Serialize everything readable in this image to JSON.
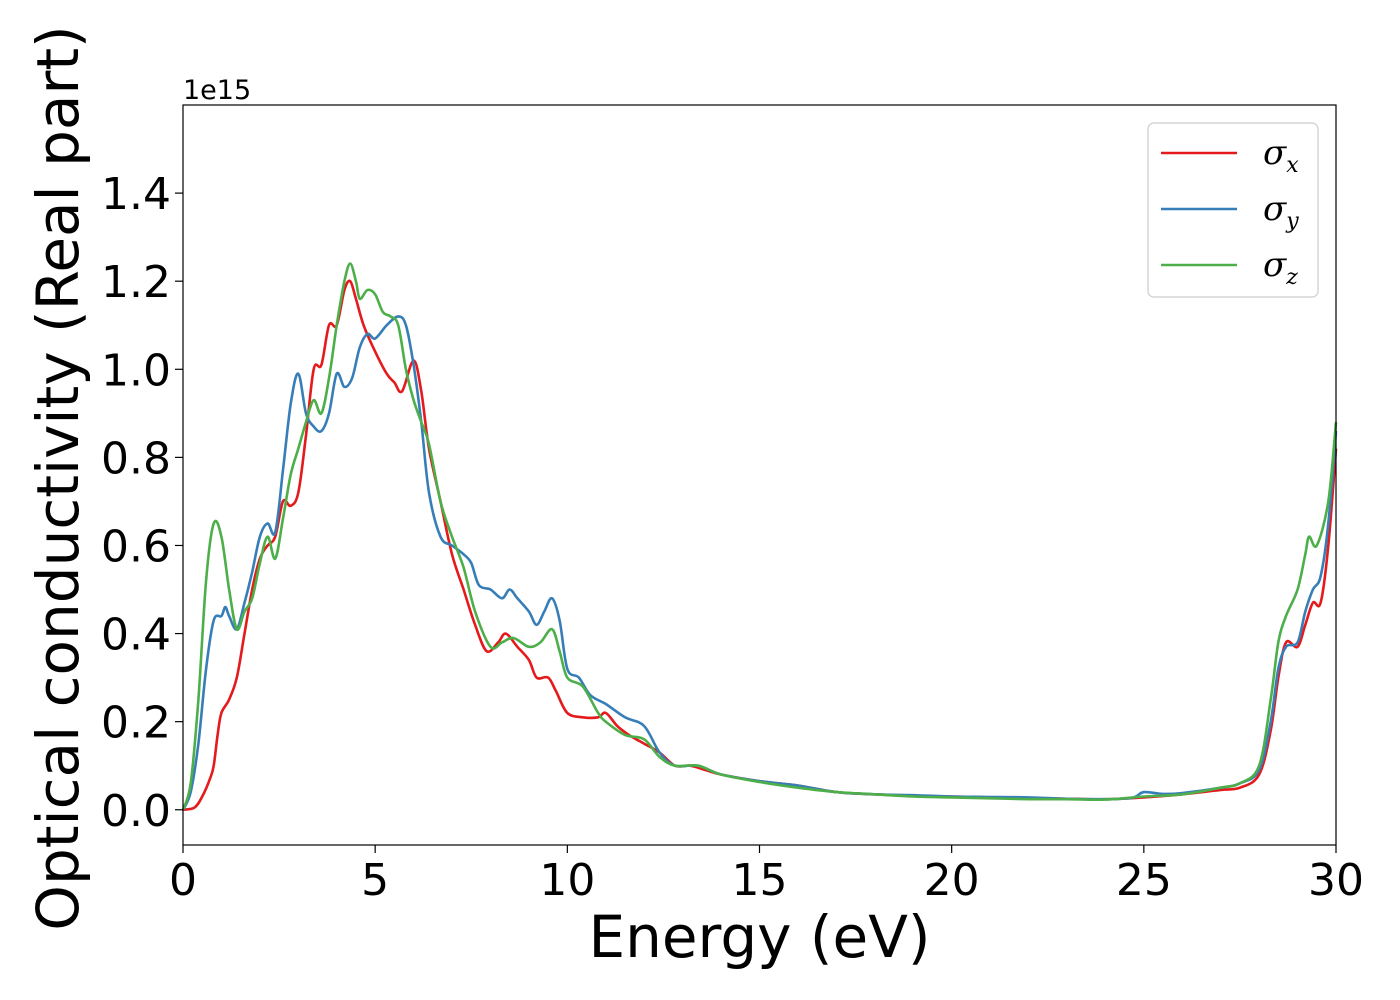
{
  "chart_data": {
    "type": "line",
    "xlabel": "Energy (eV)",
    "ylabel": "Optical conductivity (Real part)",
    "y_offset_label": "1e15",
    "xlim": [
      0,
      30
    ],
    "ylim": [
      -0.08,
      1.6
    ],
    "x_ticks": [
      0,
      5,
      10,
      15,
      20,
      25,
      30
    ],
    "x_tick_labels": [
      "0",
      "5",
      "10",
      "15",
      "20",
      "25",
      "30"
    ],
    "y_ticks": [
      0.0,
      0.2,
      0.4,
      0.6,
      0.8,
      1.0,
      1.2,
      1.4
    ],
    "y_tick_labels": [
      "0.0",
      "0.2",
      "0.4",
      "0.6",
      "0.8",
      "1.0",
      "1.2",
      "1.4"
    ],
    "grid": false,
    "legend_position": "top-right",
    "series": [
      {
        "name": "σx",
        "symbol": "σ",
        "subscript": "x",
        "color": "#e41a1c",
        "points": [
          [
            0,
            0
          ],
          [
            0.3,
            0.005
          ],
          [
            0.5,
            0.03
          ],
          [
            0.7,
            0.07
          ],
          [
            0.8,
            0.1
          ],
          [
            0.9,
            0.17
          ],
          [
            1.0,
            0.22
          ],
          [
            1.2,
            0.25
          ],
          [
            1.4,
            0.3
          ],
          [
            1.6,
            0.4
          ],
          [
            1.8,
            0.5
          ],
          [
            2.0,
            0.57
          ],
          [
            2.2,
            0.6
          ],
          [
            2.4,
            0.62
          ],
          [
            2.6,
            0.7
          ],
          [
            2.8,
            0.69
          ],
          [
            3.0,
            0.72
          ],
          [
            3.2,
            0.85
          ],
          [
            3.4,
            1.0
          ],
          [
            3.6,
            1.01
          ],
          [
            3.8,
            1.1
          ],
          [
            4.0,
            1.1
          ],
          [
            4.2,
            1.18
          ],
          [
            4.35,
            1.2
          ],
          [
            4.5,
            1.16
          ],
          [
            4.7,
            1.1
          ],
          [
            5.0,
            1.04
          ],
          [
            5.3,
            0.99
          ],
          [
            5.5,
            0.97
          ],
          [
            5.7,
            0.95
          ],
          [
            6.0,
            1.02
          ],
          [
            6.2,
            0.95
          ],
          [
            6.4,
            0.82
          ],
          [
            6.7,
            0.7
          ],
          [
            7.0,
            0.58
          ],
          [
            7.3,
            0.5
          ],
          [
            7.6,
            0.42
          ],
          [
            7.9,
            0.36
          ],
          [
            8.2,
            0.38
          ],
          [
            8.4,
            0.4
          ],
          [
            8.7,
            0.37
          ],
          [
            9.0,
            0.34
          ],
          [
            9.2,
            0.3
          ],
          [
            9.5,
            0.3
          ],
          [
            9.7,
            0.27
          ],
          [
            10.0,
            0.22
          ],
          [
            10.4,
            0.21
          ],
          [
            10.8,
            0.21
          ],
          [
            11.0,
            0.22
          ],
          [
            11.3,
            0.19
          ],
          [
            11.6,
            0.17
          ],
          [
            12.0,
            0.15
          ],
          [
            12.4,
            0.13
          ],
          [
            12.8,
            0.1
          ],
          [
            13.2,
            0.1
          ],
          [
            13.6,
            0.09
          ],
          [
            14.0,
            0.08
          ],
          [
            15.0,
            0.065
          ],
          [
            16.0,
            0.055
          ],
          [
            17.0,
            0.04
          ],
          [
            18.0,
            0.035
          ],
          [
            19.0,
            0.032
          ],
          [
            20.0,
            0.03
          ],
          [
            21.0,
            0.028
          ],
          [
            22.0,
            0.027
          ],
          [
            23.0,
            0.025
          ],
          [
            24.0,
            0.024
          ],
          [
            25.0,
            0.028
          ],
          [
            26.0,
            0.035
          ],
          [
            27.0,
            0.045
          ],
          [
            27.5,
            0.05
          ],
          [
            28.0,
            0.08
          ],
          [
            28.3,
            0.18
          ],
          [
            28.5,
            0.3
          ],
          [
            28.7,
            0.38
          ],
          [
            29.0,
            0.37
          ],
          [
            29.2,
            0.42
          ],
          [
            29.4,
            0.47
          ],
          [
            29.6,
            0.47
          ],
          [
            29.8,
            0.6
          ],
          [
            30.0,
            0.82
          ]
        ]
      },
      {
        "name": "σy",
        "symbol": "σ",
        "subscript": "y",
        "color": "#377eb8",
        "points": [
          [
            0,
            0
          ],
          [
            0.2,
            0.04
          ],
          [
            0.4,
            0.15
          ],
          [
            0.6,
            0.32
          ],
          [
            0.8,
            0.43
          ],
          [
            1.0,
            0.44
          ],
          [
            1.1,
            0.46
          ],
          [
            1.2,
            0.44
          ],
          [
            1.4,
            0.41
          ],
          [
            1.6,
            0.47
          ],
          [
            1.8,
            0.54
          ],
          [
            2.0,
            0.62
          ],
          [
            2.2,
            0.65
          ],
          [
            2.4,
            0.63
          ],
          [
            2.6,
            0.77
          ],
          [
            2.8,
            0.92
          ],
          [
            3.0,
            0.99
          ],
          [
            3.2,
            0.9
          ],
          [
            3.4,
            0.87
          ],
          [
            3.6,
            0.86
          ],
          [
            3.8,
            0.9
          ],
          [
            4.0,
            0.99
          ],
          [
            4.2,
            0.96
          ],
          [
            4.4,
            0.98
          ],
          [
            4.6,
            1.05
          ],
          [
            4.8,
            1.08
          ],
          [
            5.0,
            1.07
          ],
          [
            5.3,
            1.1
          ],
          [
            5.6,
            1.12
          ],
          [
            5.8,
            1.1
          ],
          [
            6.0,
            1.01
          ],
          [
            6.2,
            0.88
          ],
          [
            6.4,
            0.72
          ],
          [
            6.7,
            0.62
          ],
          [
            7.0,
            0.6
          ],
          [
            7.3,
            0.58
          ],
          [
            7.5,
            0.56
          ],
          [
            7.7,
            0.51
          ],
          [
            8.0,
            0.5
          ],
          [
            8.3,
            0.48
          ],
          [
            8.5,
            0.5
          ],
          [
            8.7,
            0.48
          ],
          [
            9.0,
            0.45
          ],
          [
            9.2,
            0.42
          ],
          [
            9.4,
            0.45
          ],
          [
            9.6,
            0.48
          ],
          [
            9.8,
            0.43
          ],
          [
            10.0,
            0.32
          ],
          [
            10.3,
            0.3
          ],
          [
            10.6,
            0.26
          ],
          [
            11.0,
            0.24
          ],
          [
            11.5,
            0.21
          ],
          [
            12.0,
            0.19
          ],
          [
            12.4,
            0.13
          ],
          [
            12.8,
            0.1
          ],
          [
            13.4,
            0.1
          ],
          [
            14.0,
            0.08
          ],
          [
            15.0,
            0.065
          ],
          [
            16.0,
            0.055
          ],
          [
            17.0,
            0.04
          ],
          [
            18.0,
            0.035
          ],
          [
            19.0,
            0.033
          ],
          [
            20.0,
            0.03
          ],
          [
            21.0,
            0.029
          ],
          [
            22.0,
            0.028
          ],
          [
            23.0,
            0.025
          ],
          [
            24.0,
            0.024
          ],
          [
            24.7,
            0.027
          ],
          [
            25.0,
            0.04
          ],
          [
            25.5,
            0.036
          ],
          [
            26.0,
            0.038
          ],
          [
            27.0,
            0.05
          ],
          [
            27.5,
            0.06
          ],
          [
            28.0,
            0.09
          ],
          [
            28.3,
            0.2
          ],
          [
            28.5,
            0.32
          ],
          [
            28.7,
            0.37
          ],
          [
            29.0,
            0.38
          ],
          [
            29.2,
            0.45
          ],
          [
            29.4,
            0.5
          ],
          [
            29.6,
            0.53
          ],
          [
            29.8,
            0.65
          ],
          [
            30.0,
            0.86
          ]
        ]
      },
      {
        "name": "σz",
        "symbol": "σ",
        "subscript": "z",
        "color": "#4daf4a",
        "points": [
          [
            0,
            0
          ],
          [
            0.2,
            0.06
          ],
          [
            0.4,
            0.25
          ],
          [
            0.6,
            0.52
          ],
          [
            0.8,
            0.65
          ],
          [
            1.0,
            0.62
          ],
          [
            1.2,
            0.5
          ],
          [
            1.4,
            0.41
          ],
          [
            1.6,
            0.45
          ],
          [
            1.8,
            0.48
          ],
          [
            2.0,
            0.56
          ],
          [
            2.2,
            0.62
          ],
          [
            2.4,
            0.57
          ],
          [
            2.6,
            0.66
          ],
          [
            2.8,
            0.76
          ],
          [
            3.0,
            0.82
          ],
          [
            3.2,
            0.88
          ],
          [
            3.4,
            0.93
          ],
          [
            3.6,
            0.9
          ],
          [
            3.8,
            0.98
          ],
          [
            4.0,
            1.1
          ],
          [
            4.2,
            1.2
          ],
          [
            4.35,
            1.24
          ],
          [
            4.5,
            1.2
          ],
          [
            4.6,
            1.16
          ],
          [
            4.8,
            1.18
          ],
          [
            5.0,
            1.17
          ],
          [
            5.2,
            1.13
          ],
          [
            5.4,
            1.12
          ],
          [
            5.6,
            1.1
          ],
          [
            5.8,
            1.0
          ],
          [
            6.0,
            0.93
          ],
          [
            6.2,
            0.88
          ],
          [
            6.4,
            0.83
          ],
          [
            6.7,
            0.7
          ],
          [
            7.0,
            0.62
          ],
          [
            7.3,
            0.55
          ],
          [
            7.6,
            0.45
          ],
          [
            8.0,
            0.37
          ],
          [
            8.3,
            0.38
          ],
          [
            8.6,
            0.39
          ],
          [
            9.0,
            0.37
          ],
          [
            9.3,
            0.38
          ],
          [
            9.6,
            0.41
          ],
          [
            9.8,
            0.36
          ],
          [
            10.0,
            0.3
          ],
          [
            10.4,
            0.28
          ],
          [
            10.8,
            0.22
          ],
          [
            11.0,
            0.2
          ],
          [
            11.5,
            0.17
          ],
          [
            12.0,
            0.16
          ],
          [
            12.4,
            0.12
          ],
          [
            12.8,
            0.1
          ],
          [
            13.4,
            0.1
          ],
          [
            14.0,
            0.08
          ],
          [
            15.0,
            0.063
          ],
          [
            16.0,
            0.05
          ],
          [
            17.0,
            0.04
          ],
          [
            18.0,
            0.035
          ],
          [
            19.0,
            0.03
          ],
          [
            20.0,
            0.028
          ],
          [
            21.0,
            0.026
          ],
          [
            22.0,
            0.024
          ],
          [
            23.0,
            0.024
          ],
          [
            24.0,
            0.023
          ],
          [
            25.0,
            0.03
          ],
          [
            26.0,
            0.035
          ],
          [
            27.0,
            0.05
          ],
          [
            27.5,
            0.06
          ],
          [
            28.0,
            0.1
          ],
          [
            28.3,
            0.25
          ],
          [
            28.5,
            0.38
          ],
          [
            28.7,
            0.44
          ],
          [
            29.0,
            0.5
          ],
          [
            29.2,
            0.58
          ],
          [
            29.3,
            0.62
          ],
          [
            29.5,
            0.6
          ],
          [
            29.8,
            0.7
          ],
          [
            30.0,
            0.88
          ]
        ]
      }
    ]
  }
}
